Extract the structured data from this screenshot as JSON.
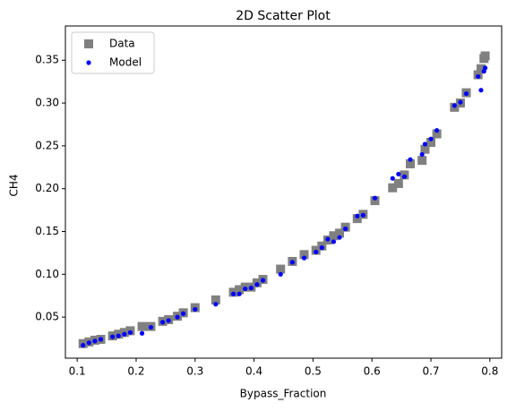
{
  "chart_data": {
    "type": "scatter",
    "title": "2D Scatter Plot",
    "x_label": "Bypass_Fraction",
    "y_label": "CH4",
    "x": [
      0.11,
      0.12,
      0.13,
      0.14,
      0.16,
      0.17,
      0.18,
      0.19,
      0.21,
      0.225,
      0.245,
      0.255,
      0.27,
      0.28,
      0.3,
      0.335,
      0.365,
      0.375,
      0.385,
      0.395,
      0.405,
      0.415,
      0.445,
      0.465,
      0.485,
      0.505,
      0.515,
      0.525,
      0.535,
      0.545,
      0.555,
      0.575,
      0.585,
      0.605,
      0.635,
      0.645,
      0.655,
      0.665,
      0.685,
      0.69,
      0.7,
      0.71,
      0.74,
      0.75,
      0.76,
      0.78,
      0.785,
      0.79,
      0.792
    ],
    "series": [
      {
        "name": "Data",
        "color": "#808080",
        "marker": "square",
        "values": [
          0.019,
          0.021,
          0.023,
          0.024,
          0.028,
          0.03,
          0.032,
          0.034,
          0.039,
          0.039,
          0.045,
          0.047,
          0.051,
          0.055,
          0.061,
          0.07,
          0.079,
          0.082,
          0.085,
          0.085,
          0.09,
          0.094,
          0.106,
          0.115,
          0.123,
          0.128,
          0.133,
          0.14,
          0.145,
          0.148,
          0.155,
          0.165,
          0.17,
          0.186,
          0.201,
          0.206,
          0.216,
          0.229,
          0.233,
          0.246,
          0.254,
          0.264,
          0.295,
          0.3,
          0.312,
          0.333,
          0.34,
          0.352,
          0.355
        ]
      },
      {
        "name": "Model",
        "color": "#0000ff",
        "marker": "circle",
        "values": [
          0.017,
          0.02,
          0.022,
          0.024,
          0.027,
          0.028,
          0.03,
          0.032,
          0.031,
          0.038,
          0.044,
          0.046,
          0.05,
          0.054,
          0.059,
          0.065,
          0.077,
          0.077,
          0.083,
          0.084,
          0.088,
          0.093,
          0.1,
          0.114,
          0.119,
          0.126,
          0.131,
          0.141,
          0.138,
          0.143,
          0.153,
          0.168,
          0.169,
          0.189,
          0.212,
          0.217,
          0.214,
          0.234,
          0.24,
          0.252,
          0.258,
          0.268,
          0.297,
          0.301,
          0.311,
          0.331,
          0.315,
          0.337,
          0.341
        ]
      }
    ],
    "xlim": [
      0.08,
      0.82
    ],
    "ylim": [
      0.002,
      0.39
    ],
    "xticks": [
      0.1,
      0.2,
      0.3,
      0.4,
      0.5,
      0.6,
      0.7,
      0.8
    ],
    "yticks": [
      0.05,
      {
        "value": 0.1,
        "label": "0.10"
      },
      0.15,
      {
        "value": 0.2,
        "label": "0.20"
      },
      0.25,
      {
        "value": 0.3,
        "label": "0.30"
      },
      0.35
    ],
    "legend": "upper left"
  }
}
